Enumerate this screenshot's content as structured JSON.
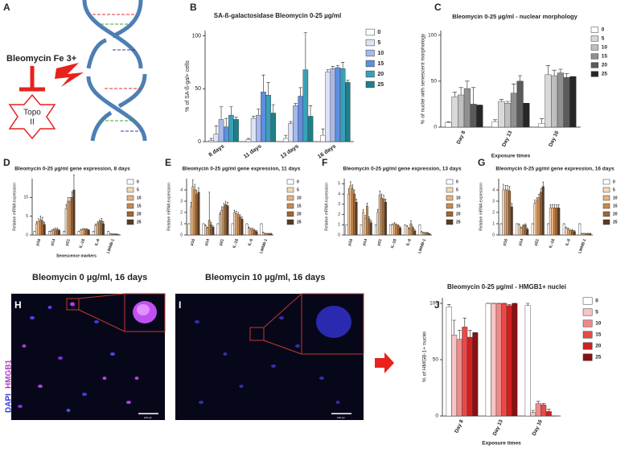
{
  "panel_labels": [
    "A",
    "B",
    "C",
    "D",
    "E",
    "F",
    "G",
    "H",
    "I",
    "J"
  ],
  "diagram": {
    "drug": "Bleomycin Fe 3+",
    "target": [
      "Topo",
      "II"
    ]
  },
  "images": [
    {
      "title": "Bleomycin  0 µg/ml, 16 days",
      "scale_bar": "100 µm"
    },
    {
      "title": "Bleomycin  10 µg/ml, 16 days",
      "scale_bar": "100 µm"
    }
  ],
  "stain": [
    "DAPI",
    "HMGB1"
  ],
  "chart_data": [
    {
      "type": "bar",
      "title": "SA-ß-galactosidase Bleomycin 0-25 µg/ml",
      "ylabel": "% of SA-ß-gal+ cells",
      "categories": [
        "8 days",
        "11 days",
        "13 days",
        "16 days"
      ],
      "ylim": [
        0,
        105
      ],
      "yticks": [
        0,
        50,
        100
      ],
      "series": [
        {
          "name": "0",
          "color": "#ffffff",
          "values": [
            1,
            2,
            3,
            6
          ],
          "errors": [
            2,
            1,
            3,
            6
          ]
        },
        {
          "name": "5",
          "color": "#dde3f6",
          "values": [
            7,
            22,
            17,
            66
          ],
          "errors": [
            8,
            2,
            2,
            2
          ]
        },
        {
          "name": "10",
          "color": "#a8b8ea",
          "values": [
            21,
            25,
            34,
            69
          ],
          "errors": [
            12,
            6,
            2,
            2
          ]
        },
        {
          "name": "15",
          "color": "#5e8ee0",
          "values": [
            14,
            47,
            43,
            70
          ],
          "errors": [
            8,
            16,
            8,
            2
          ]
        },
        {
          "name": "20",
          "color": "#3aa0b8",
          "values": [
            25,
            44,
            68,
            69
          ],
          "errors": [
            8,
            12,
            35,
            6
          ]
        },
        {
          "name": "25",
          "color": "#1f7f88",
          "values": [
            21,
            27,
            24,
            56
          ],
          "errors": [
            2,
            8,
            10,
            2
          ]
        }
      ]
    },
    {
      "type": "bar",
      "title": "Bleomycin 0-25 µg/ml - nuclear morphology",
      "ylabel": "% of nuclei with senescent morphology",
      "xlabel": "Exposure times",
      "categories": [
        "Day 8",
        "Day 13",
        "Day 16"
      ],
      "ylim": [
        0,
        105
      ],
      "yticks": [
        0,
        50,
        100
      ],
      "series": [
        {
          "name": "0",
          "color": "#ffffff",
          "values": [
            5,
            6,
            4
          ],
          "errors": [
            1,
            2,
            5
          ]
        },
        {
          "name": "5",
          "color": "#d9d9d9",
          "values": [
            33,
            28,
            57
          ],
          "errors": [
            5,
            2,
            10
          ]
        },
        {
          "name": "10",
          "color": "#bfbfbf",
          "values": [
            35,
            26,
            56
          ],
          "errors": [
            8,
            2,
            6
          ]
        },
        {
          "name": "15",
          "color": "#909090",
          "values": [
            42,
            37,
            59
          ],
          "errors": [
            8,
            10,
            4
          ]
        },
        {
          "name": "20",
          "color": "#5a5a5a",
          "values": [
            25,
            50,
            54
          ],
          "errors": [
            18,
            6,
            4
          ]
        },
        {
          "name": "25",
          "color": "#262626",
          "values": [
            24,
            26,
            55
          ],
          "errors": [
            0,
            0,
            0
          ]
        }
      ]
    },
    {
      "type": "bar",
      "title": "Bleomycin 0-25 µg/ml gene expression, 8 days",
      "ylabel": "Relative mRNA expression",
      "xlabel": "Senescence markers",
      "categories": [
        "p16",
        "p14",
        "p21",
        "IL-1ß",
        "IL-6",
        "LMNB-1"
      ],
      "ylim": [
        0,
        15
      ],
      "yticks": [
        0,
        5,
        10
      ],
      "series": [
        {
          "name": "0",
          "color": "#ffffff",
          "values": [
            1,
            1,
            1,
            1,
            1,
            1
          ],
          "errors": [
            0,
            0,
            0,
            0,
            0,
            0
          ]
        },
        {
          "name": "5",
          "color": "#f5d9b8",
          "values": [
            3,
            1,
            7,
            1.3,
            2.5,
            0.3
          ],
          "errors": [
            0.6,
            0.3,
            1,
            0.2,
            0.4,
            0.1
          ]
        },
        {
          "name": "10",
          "color": "#e8b27e",
          "values": [
            3.5,
            1.3,
            9,
            1.5,
            3,
            0.2
          ],
          "errors": [
            0.8,
            0.3,
            1,
            0.2,
            0.5,
            0.1
          ]
        },
        {
          "name": "15",
          "color": "#c98a4e",
          "values": [
            4,
            1.5,
            9,
            1.5,
            3.5,
            0.2
          ],
          "errors": [
            1,
            0.4,
            1,
            0.2,
            0.5,
            0.1
          ]
        },
        {
          "name": "20",
          "color": "#9c6636",
          "values": [
            3.7,
            1.5,
            10,
            1.5,
            3.8,
            0.2
          ],
          "errors": [
            1,
            0.4,
            1.5,
            0.2,
            0.6,
            0.1
          ]
        },
        {
          "name": "25",
          "color": "#5a3a22",
          "values": [
            2.8,
            1.2,
            12,
            1.3,
            3,
            0.1
          ],
          "errors": [
            0.6,
            0.3,
            4,
            0.2,
            0.5,
            0.1
          ]
        }
      ]
    },
    {
      "type": "bar",
      "title": "Bleomycin 0-25 µg/ml gene expression, 11 days",
      "ylabel": "Relative mRNA expression",
      "categories": [
        "p16",
        "p14",
        "p21",
        "IL-1ß",
        "IL-6",
        "LMNB-1"
      ],
      "ylim": [
        0,
        5
      ],
      "yticks": [
        0,
        1,
        2,
        3,
        4
      ],
      "series": [
        {
          "name": "0",
          "color": "#ffffff",
          "values": [
            1,
            1,
            1,
            1,
            1,
            1
          ],
          "errors": [
            0,
            0,
            0,
            0,
            0,
            0
          ]
        },
        {
          "name": "5",
          "color": "#f5d9b8",
          "values": [
            2.5,
            0.8,
            1.8,
            2,
            0.6,
            0.2
          ],
          "errors": [
            0.4,
            0.1,
            0.2,
            0.2,
            0.1,
            0.05
          ]
        },
        {
          "name": "10",
          "color": "#e8b27e",
          "values": [
            4.3,
            0.6,
            2.2,
            1.9,
            0.5,
            0.1
          ],
          "errors": [
            0.6,
            0.1,
            0.3,
            0.2,
            0.1,
            0.05
          ]
        },
        {
          "name": "15",
          "color": "#c98a4e",
          "values": [
            4,
            1.3,
            2.5,
            1.8,
            0.5,
            0.1
          ],
          "errors": [
            0.5,
            2.5,
            0.3,
            0.2,
            0.1,
            0.05
          ]
        },
        {
          "name": "20",
          "color": "#9c6636",
          "values": [
            3.6,
            0.9,
            2.7,
            1.6,
            0.4,
            0.1
          ],
          "errors": [
            0.4,
            0.2,
            0.3,
            0.2,
            0.1,
            0.05
          ]
        },
        {
          "name": "25",
          "color": "#5a3a22",
          "values": [
            3.8,
            0.7,
            2.6,
            1.4,
            0.3,
            0.1
          ],
          "errors": [
            0.4,
            0.1,
            0.3,
            0.2,
            0.1,
            0.05
          ]
        }
      ]
    },
    {
      "type": "bar",
      "title": "Bleomycin 0-25 µg/ml gene expression, 13 days",
      "ylabel": "Relative mRNA expression",
      "categories": [
        "p16",
        "p14",
        "p21",
        "IL-1ß",
        "IL-6",
        "LMNB-1"
      ],
      "ylim": [
        0,
        5.5
      ],
      "yticks": [
        0,
        1,
        2,
        3,
        4,
        5
      ],
      "series": [
        {
          "name": "0",
          "color": "#ffffff",
          "values": [
            1,
            1,
            1,
            1,
            1,
            1
          ],
          "errors": [
            0,
            0,
            0,
            0,
            0,
            0
          ]
        },
        {
          "name": "5",
          "color": "#f5d9b8",
          "values": [
            4,
            2.2,
            2.2,
            1,
            0.8,
            0.3
          ],
          "errors": [
            0.5,
            0.3,
            0.3,
            0.1,
            0.1,
            0.05
          ]
        },
        {
          "name": "10",
          "color": "#e8b27e",
          "values": [
            4.8,
            1.6,
            3.9,
            1.1,
            0.6,
            0.2
          ],
          "errors": [
            0.4,
            0.3,
            0.4,
            0.1,
            0.1,
            0.05
          ]
        },
        {
          "name": "15",
          "color": "#c98a4e",
          "values": [
            4.5,
            2.8,
            3.6,
            1,
            1.1,
            0.2
          ],
          "errors": [
            0.4,
            0.3,
            0.4,
            0.1,
            0.3,
            0.05
          ]
        },
        {
          "name": "20",
          "color": "#9c6636",
          "values": [
            4,
            1.6,
            3.5,
            0.9,
            0.7,
            0.2
          ],
          "errors": [
            0.4,
            0.2,
            0.4,
            0.1,
            0.1,
            0.05
          ]
        },
        {
          "name": "25",
          "color": "#5a3a22",
          "values": [
            3.2,
            1.2,
            3.2,
            0.7,
            0.4,
            0.1
          ],
          "errors": [
            0.3,
            0.2,
            0.3,
            0.1,
            0.1,
            0.05
          ]
        }
      ]
    },
    {
      "type": "bar",
      "title": "Bleomycin 0-25 µg/ml gene expression, 16 days",
      "ylabel": "Relative mRNA expression",
      "categories": [
        "p16",
        "p14",
        "p21",
        "IL-1ß",
        "IL-6",
        "LMNB-1"
      ],
      "ylim": [
        0,
        5
      ],
      "yticks": [
        0,
        1,
        2,
        3,
        4
      ],
      "series": [
        {
          "name": "0",
          "color": "#ffffff",
          "values": [
            1,
            1,
            1,
            1,
            1,
            1
          ],
          "errors": [
            0,
            0,
            0,
            0,
            0,
            0
          ]
        },
        {
          "name": "5",
          "color": "#f5d9b8",
          "values": [
            4,
            0.9,
            2.8,
            2.4,
            0.6,
            0.1
          ],
          "errors": [
            0.5,
            0.1,
            0.3,
            0.3,
            0.1,
            0.05
          ]
        },
        {
          "name": "10",
          "color": "#e8b27e",
          "values": [
            4,
            0.6,
            3,
            2.4,
            0.5,
            0.1
          ],
          "errors": [
            0.4,
            0.1,
            0.3,
            0.3,
            0.1,
            0.05
          ]
        },
        {
          "name": "15",
          "color": "#c98a4e",
          "values": [
            4,
            0.8,
            3.3,
            2.4,
            0.4,
            0.1
          ],
          "errors": [
            0.4,
            0.1,
            0.3,
            0.3,
            0.1,
            0.05
          ]
        },
        {
          "name": "20",
          "color": "#9c6636",
          "values": [
            3.9,
            0.9,
            3.8,
            2.4,
            0.4,
            0.1
          ],
          "errors": [
            0.4,
            0.1,
            0.3,
            0.3,
            0.1,
            0.05
          ]
        },
        {
          "name": "25",
          "color": "#5a3a22",
          "values": [
            2.5,
            0.5,
            4.3,
            2.4,
            0.3,
            0.1
          ],
          "errors": [
            0.3,
            0.1,
            0.4,
            0.3,
            0.1,
            0.05
          ]
        }
      ]
    },
    {
      "type": "bar",
      "title": "Bleomycin 0-25 µg/ml - HMGB1+ nuclei",
      "ylabel": "% of HMGB-1+ nuclei",
      "xlabel": "Exposure times",
      "categories": [
        "Day 8",
        "Day 13",
        "Day 16"
      ],
      "ylim": [
        0,
        105
      ],
      "yticks": [
        0,
        50,
        100
      ],
      "series": [
        {
          "name": "0",
          "color": "#ffffff",
          "values": [
            97,
            100,
            98
          ],
          "errors": [
            2,
            0,
            2
          ]
        },
        {
          "name": "5",
          "color": "#f7c4c4",
          "values": [
            72,
            100,
            3
          ],
          "errors": [
            13,
            0,
            2
          ]
        },
        {
          "name": "10",
          "color": "#f08a8a",
          "values": [
            68,
            100,
            11
          ],
          "errors": [
            8,
            0,
            2
          ]
        },
        {
          "name": "15",
          "color": "#e84a4a",
          "values": [
            79,
            100,
            10
          ],
          "errors": [
            8,
            0,
            1
          ]
        },
        {
          "name": "20",
          "color": "#d21f1f",
          "values": [
            70,
            98,
            4
          ],
          "errors": [
            6,
            1,
            2
          ]
        },
        {
          "name": "25",
          "color": "#8c1010",
          "values": [
            74,
            100,
            0
          ],
          "errors": [
            0,
            0,
            0
          ]
        }
      ]
    }
  ]
}
